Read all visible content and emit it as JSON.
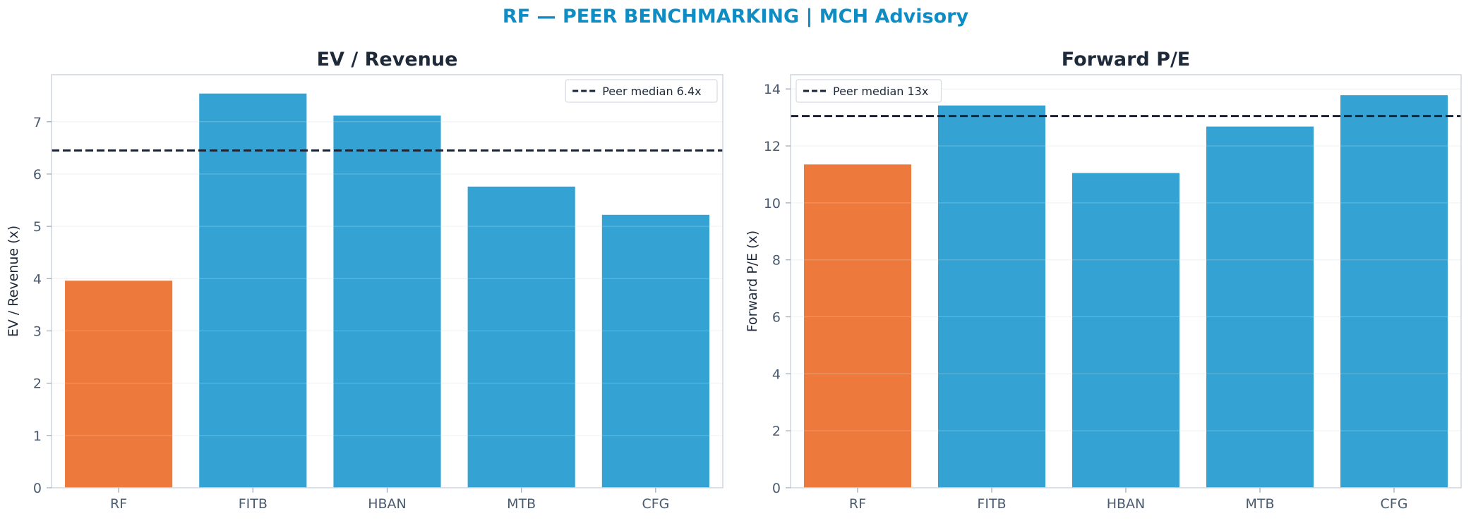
{
  "suptitle": "RF — PEER BENCHMARKING | MCH Advisory",
  "colors": {
    "highlight": "#ed7a3c",
    "peer": "#34a3d4",
    "median_line": "#1a2436",
    "title": "#0e8cc4"
  },
  "chart_data": [
    {
      "type": "bar",
      "title": "EV / Revenue",
      "xlabel": "",
      "ylabel": "EV / Revenue (x)",
      "categories": [
        "RF",
        "FITB",
        "HBAN",
        "MTB",
        "CFG"
      ],
      "values": [
        3.96,
        7.54,
        7.12,
        5.76,
        5.22
      ],
      "highlight": "RF",
      "ylim": [
        0,
        7.9
      ],
      "yticks": [
        0,
        1,
        2,
        3,
        4,
        5,
        6,
        7
      ],
      "reference_line": {
        "value": 6.45,
        "label": "Peer median 6.4x",
        "style": "dashed"
      },
      "legend": "top-right",
      "grid": true
    },
    {
      "type": "bar",
      "title": "Forward P/E",
      "xlabel": "",
      "ylabel": "Forward P/E (x)",
      "categories": [
        "RF",
        "FITB",
        "HBAN",
        "MTB",
        "CFG"
      ],
      "values": [
        11.35,
        13.42,
        11.05,
        12.68,
        13.78
      ],
      "highlight": "RF",
      "ylim": [
        0,
        14.5
      ],
      "yticks": [
        0,
        2,
        4,
        6,
        8,
        10,
        12,
        14
      ],
      "reference_line": {
        "value": 13.05,
        "label": "Peer median 13x",
        "style": "dashed"
      },
      "legend": "top-left",
      "grid": true
    }
  ]
}
